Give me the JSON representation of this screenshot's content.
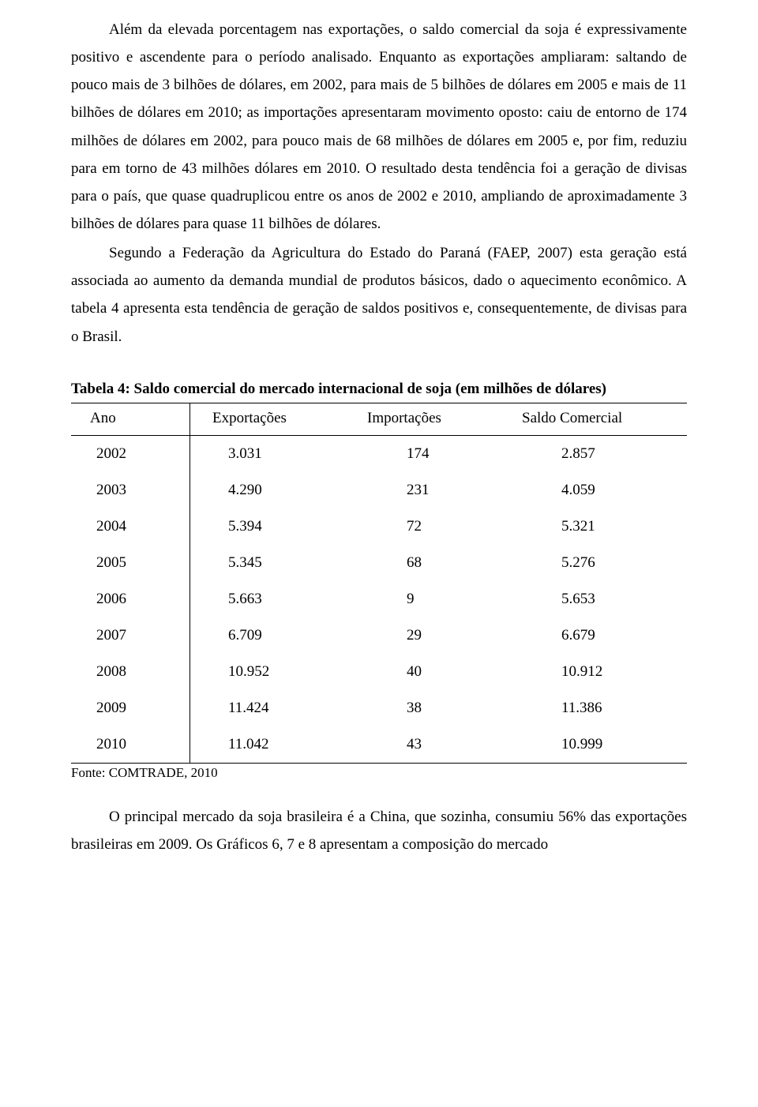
{
  "paragraphs": {
    "p1": "Além da elevada porcentagem nas exportações, o saldo comercial da soja é expressivamente positivo e ascendente para o período analisado. Enquanto as exportações ampliaram: saltando de pouco mais de 3 bilhões de dólares, em 2002, para mais de 5 bilhões de dólares em 2005 e mais de 11 bilhões de dólares em 2010; as importações apresentaram movimento oposto: caiu de entorno de 174 milhões de dólares em 2002, para pouco mais de 68 milhões de dólares em 2005 e, por fim, reduziu para em torno de 43 milhões dólares em 2010. O resultado desta tendência foi a geração de divisas para o país, que quase quadruplicou entre os anos de 2002 e 2010, ampliando de aproximadamente 3 bilhões de dólares para quase 11 bilhões de dólares.",
    "p2": "Segundo a Federação da Agricultura do Estado do Paraná (FAEP, 2007) esta geração está associada ao aumento da demanda mundial de produtos básicos, dado o aquecimento econômico. A tabela 4 apresenta esta tendência de geração de saldos positivos e, consequentemente, de divisas para o Brasil.",
    "p3": "O principal mercado da soja brasileira é a China, que sozinha, consumiu 56% das exportações brasileiras em 2009. Os Gráficos 6, 7 e 8 apresentam a composição do mercado"
  },
  "table": {
    "title": "Tabela 4: Saldo comercial do mercado internacional de soja (em milhões de dólares)",
    "columns": [
      "Ano",
      "Exportações",
      "Importações",
      "Saldo Comercial"
    ],
    "rows": [
      [
        "2002",
        "3.031",
        "174",
        "2.857"
      ],
      [
        "2003",
        "4.290",
        "231",
        "4.059"
      ],
      [
        "2004",
        "5.394",
        "72",
        "5.321"
      ],
      [
        "2005",
        "5.345",
        "68",
        "5.276"
      ],
      [
        "2006",
        "5.663",
        "9",
        "5.653"
      ],
      [
        "2007",
        "6.709",
        "29",
        "6.679"
      ],
      [
        "2008",
        "10.952",
        "40",
        "10.912"
      ],
      [
        "2009",
        "11.424",
        "38",
        "11.386"
      ],
      [
        "2010",
        "11.042",
        "43",
        "10.999"
      ]
    ],
    "source": "Fonte: COMTRADE, 2010"
  }
}
